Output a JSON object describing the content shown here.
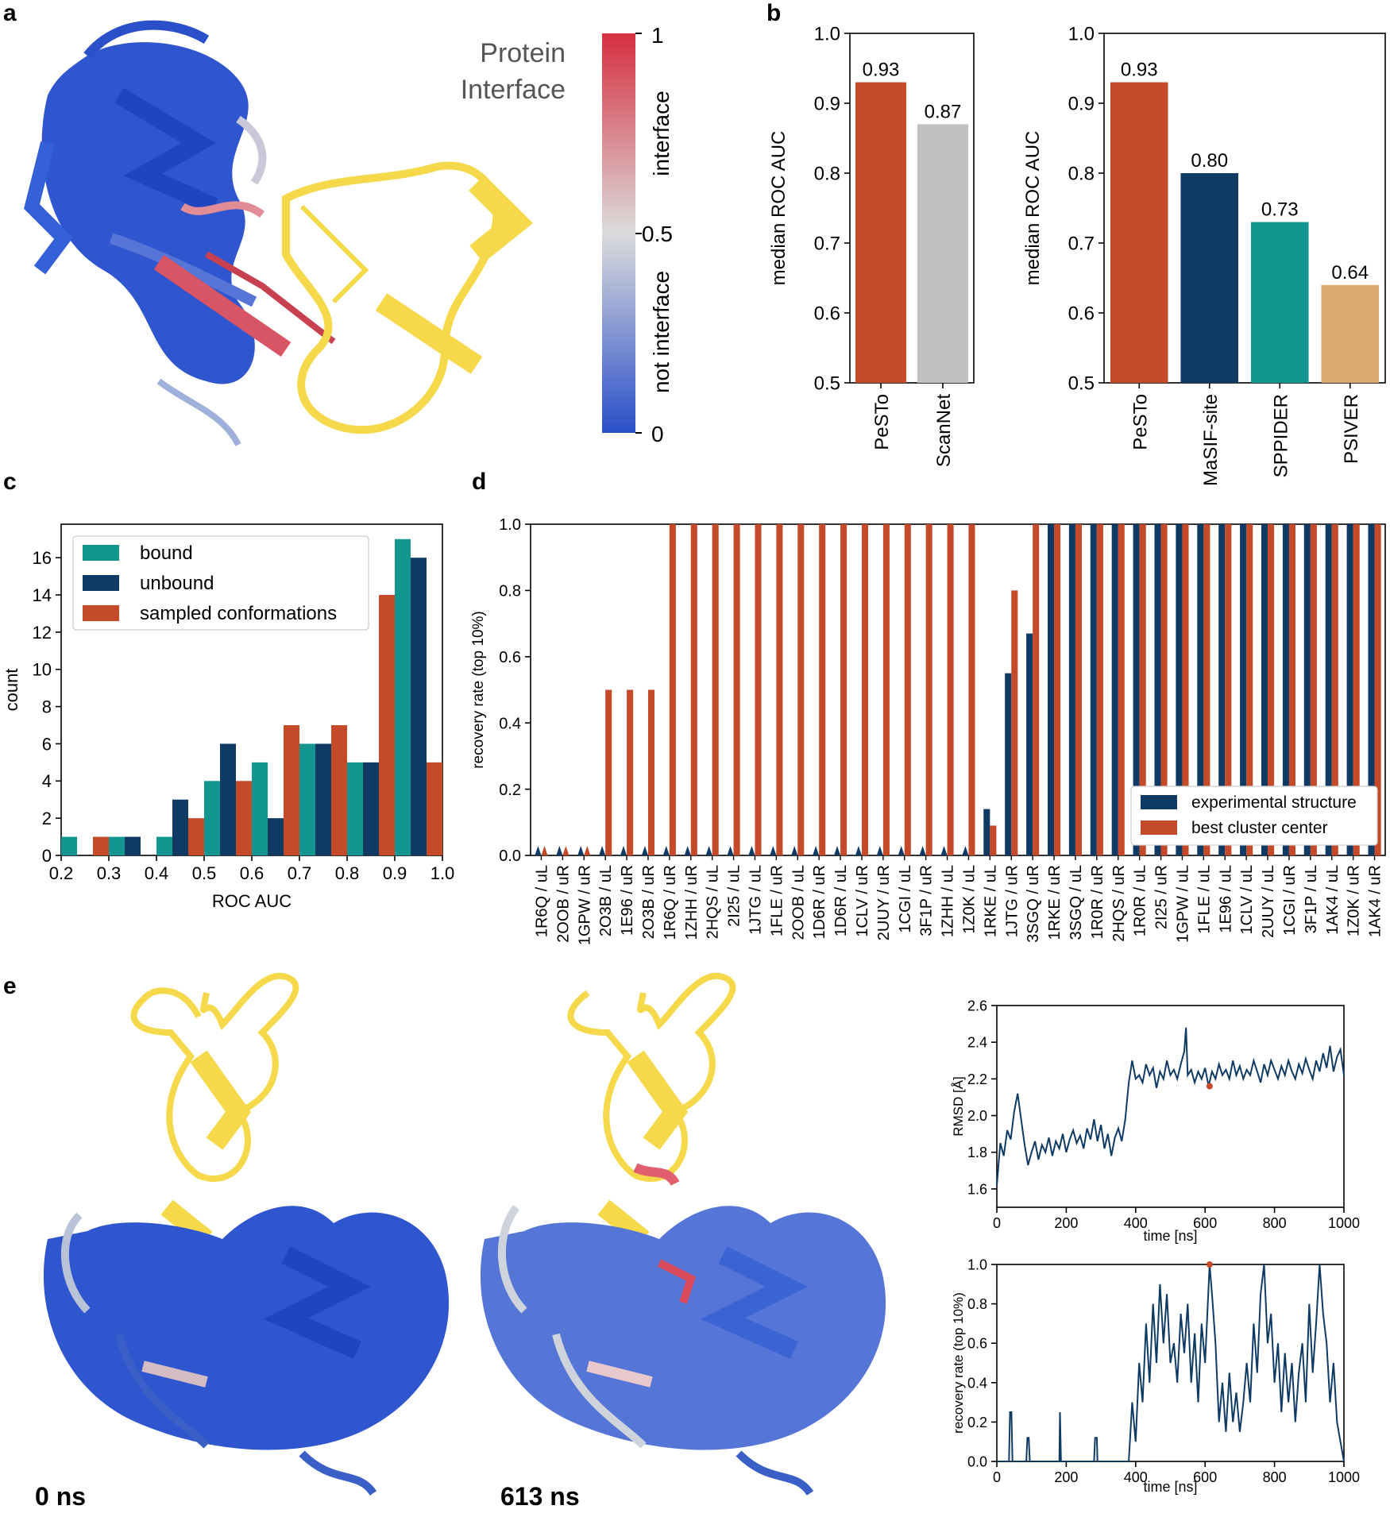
{
  "panel_labels": {
    "a": "a",
    "b": "b",
    "c": "c",
    "d": "d",
    "e": "e"
  },
  "panel_a": {
    "title_line1": "Protein",
    "title_line2": "Interface",
    "colorbar": {
      "ticks": [
        "1",
        "0.5",
        "0"
      ],
      "label_top": "interface",
      "label_bottom": "not interface",
      "colors": {
        "high": "#d62f40",
        "mid": "#dcdcdc",
        "low": "#2a4fc9"
      }
    }
  },
  "panel_e": {
    "time_left": "0 ns",
    "time_right": "613 ns"
  },
  "colors": {
    "pesto": "#c54a2a",
    "scannet": "#c0c0c0",
    "masif": "#0f3a64",
    "sppider": "#13968f",
    "psiver": "#d9aa6e",
    "bound": "#13968f",
    "unbound": "#0f3a64",
    "sampled": "#c54a2a",
    "protein_yellow": "#f5d94a",
    "protein_blue": "#2f55cf"
  },
  "chart_data": [
    {
      "id": "b_left",
      "type": "bar",
      "categories": [
        "PeSTo",
        "ScanNet"
      ],
      "values": [
        0.93,
        0.87
      ],
      "value_labels": [
        "0.93",
        "0.87"
      ],
      "ylabel": "median ROC AUC",
      "ylim": [
        0.5,
        1.0
      ],
      "yticks": [
        "0.5",
        "0.6",
        "0.7",
        "0.8",
        "0.9",
        "1.0"
      ]
    },
    {
      "id": "b_right",
      "type": "bar",
      "categories": [
        "PeSTo",
        "MaSIF-site",
        "SPPIDER",
        "PSIVER"
      ],
      "values": [
        0.93,
        0.8,
        0.73,
        0.64
      ],
      "value_labels": [
        "0.93",
        "0.80",
        "0.73",
        "0.64"
      ],
      "ylabel": "median ROC AUC",
      "ylim": [
        0.5,
        1.0
      ],
      "yticks": [
        "0.5",
        "0.6",
        "0.7",
        "0.8",
        "0.9",
        "1.0"
      ]
    },
    {
      "id": "c",
      "type": "bar",
      "xlabel": "ROC AUC",
      "ylabel": "count",
      "xlim": [
        0.2,
        1.0
      ],
      "ylim": [
        0,
        17.8
      ],
      "xticks": [
        "0.2",
        "0.3",
        "0.4",
        "0.5",
        "0.6",
        "0.7",
        "0.8",
        "0.9",
        "1.0"
      ],
      "yticks": [
        "0",
        "2",
        "4",
        "6",
        "8",
        "10",
        "12",
        "14",
        "16"
      ],
      "bin_centers": [
        0.25,
        0.35,
        0.45,
        0.55,
        0.65,
        0.75,
        0.85,
        0.95
      ],
      "legend_position": "top-left",
      "series": [
        {
          "name": "bound",
          "values": [
            1,
            1,
            1,
            4,
            5,
            6,
            5,
            17
          ]
        },
        {
          "name": "unbound",
          "values": [
            0,
            1,
            3,
            6,
            2,
            6,
            5,
            16
          ]
        },
        {
          "name": "sampled conformations",
          "values": [
            1,
            0,
            2,
            4,
            7,
            7,
            14,
            5
          ]
        }
      ]
    },
    {
      "id": "d",
      "type": "bar",
      "ylabel": "recovery rate (top 10%)",
      "ylim": [
        0,
        1.0
      ],
      "yticks": [
        "0.0",
        "0.2",
        "0.4",
        "0.6",
        "0.8",
        "1.0"
      ],
      "legend_position": "bottom-right",
      "categories": [
        "1R6Q / uL",
        "2OOB / uR",
        "1GPW / uR",
        "2O3B / uL",
        "1E96 / uR",
        "2O3B / uR",
        "1R6Q / uR",
        "1ZHH / uR",
        "2HQS / uL",
        "2I25 / uL",
        "1JTG / uL",
        "1FLE / uR",
        "2OOB / uL",
        "1D6R / uR",
        "1D6R / uL",
        "1CLV / uR",
        "2UUY / uR",
        "1CGI / uL",
        "3F1P / uR",
        "1ZHH / uL",
        "1Z0K / uL",
        "1RKE / uL",
        "1JTG / uR",
        "3SGQ / uR",
        "1RKE / uR",
        "3SGQ / uL",
        "1R0R / uR",
        "2HQS / uR",
        "1R0R / uL",
        "2I25 / uR",
        "1GPW / uL",
        "1FLE / uL",
        "1E96 / uL",
        "1CLV / uL",
        "2UUY / uL",
        "1CGI / uR",
        "3F1P / uL",
        "1AK4 / uL",
        "1Z0K / uR",
        "1AK4 / uR"
      ],
      "series": [
        {
          "name": "experimental structure",
          "values": [
            0,
            0,
            0,
            0,
            0,
            0,
            0,
            0,
            0,
            0,
            0,
            0,
            0,
            0,
            0,
            0,
            0,
            0,
            0,
            0,
            0,
            0.14,
            0.55,
            0.67,
            1,
            1,
            1,
            1,
            1,
            1,
            1,
            1,
            1,
            1,
            1,
            1,
            1,
            1,
            1,
            1
          ]
        },
        {
          "name": "best cluster center",
          "values": [
            0,
            0,
            0,
            0.5,
            0.5,
            0.5,
            1,
            1,
            1,
            1,
            1,
            1,
            1,
            1,
            1,
            1,
            1,
            1,
            1,
            1,
            1,
            0.09,
            0.8,
            1,
            1,
            1,
            1,
            1,
            1,
            1,
            1,
            1,
            1,
            1,
            1,
            1,
            1,
            1,
            1,
            1
          ]
        }
      ]
    },
    {
      "id": "e_top",
      "type": "line",
      "xlabel": "time [ns]",
      "ylabel": "RMSD [Å]",
      "xlim": [
        0,
        1000
      ],
      "ylim": [
        1.5,
        2.6
      ],
      "xticks": [
        "0",
        "200",
        "400",
        "600",
        "800",
        "1000"
      ],
      "yticks": [
        "1.6",
        "1.8",
        "2.0",
        "2.2",
        "2.4",
        "2.6"
      ],
      "series": [
        {
          "values": [
            [
              0,
              1.62
            ],
            [
              10,
              1.85
            ],
            [
              20,
              1.78
            ],
            [
              30,
              1.92
            ],
            [
              40,
              1.87
            ],
            [
              50,
              2.02
            ],
            [
              60,
              2.12
            ],
            [
              70,
              1.98
            ],
            [
              80,
              1.84
            ],
            [
              90,
              1.73
            ],
            [
              100,
              1.8
            ],
            [
              110,
              1.86
            ],
            [
              120,
              1.76
            ],
            [
              130,
              1.84
            ],
            [
              140,
              1.8
            ],
            [
              150,
              1.88
            ],
            [
              160,
              1.78
            ],
            [
              170,
              1.86
            ],
            [
              180,
              1.82
            ],
            [
              190,
              1.9
            ],
            [
              200,
              1.8
            ],
            [
              210,
              1.87
            ],
            [
              220,
              1.92
            ],
            [
              230,
              1.85
            ],
            [
              240,
              1.89
            ],
            [
              250,
              1.82
            ],
            [
              260,
              1.93
            ],
            [
              270,
              1.87
            ],
            [
              280,
              1.98
            ],
            [
              290,
              1.86
            ],
            [
              300,
              1.95
            ],
            [
              310,
              1.82
            ],
            [
              320,
              1.9
            ],
            [
              330,
              1.78
            ],
            [
              340,
              1.88
            ],
            [
              350,
              1.93
            ],
            [
              360,
              1.86
            ],
            [
              370,
              1.98
            ],
            [
              380,
              2.18
            ],
            [
              390,
              2.3
            ],
            [
              400,
              2.2
            ],
            [
              410,
              2.22
            ],
            [
              420,
              2.18
            ],
            [
              430,
              2.28
            ],
            [
              440,
              2.22
            ],
            [
              450,
              2.26
            ],
            [
              460,
              2.15
            ],
            [
              470,
              2.24
            ],
            [
              480,
              2.2
            ],
            [
              490,
              2.3
            ],
            [
              500,
              2.22
            ],
            [
              510,
              2.25
            ],
            [
              520,
              2.2
            ],
            [
              530,
              2.28
            ],
            [
              540,
              2.35
            ],
            [
              545,
              2.48
            ],
            [
              550,
              2.22
            ],
            [
              560,
              2.25
            ],
            [
              570,
              2.18
            ],
            [
              580,
              2.24
            ],
            [
              590,
              2.2
            ],
            [
              600,
              2.26
            ],
            [
              610,
              2.16
            ],
            [
              620,
              2.24
            ],
            [
              630,
              2.2
            ],
            [
              640,
              2.28
            ],
            [
              650,
              2.22
            ],
            [
              660,
              2.25
            ],
            [
              670,
              2.2
            ],
            [
              680,
              2.3
            ],
            [
              690,
              2.22
            ],
            [
              700,
              2.27
            ],
            [
              710,
              2.2
            ],
            [
              720,
              2.25
            ],
            [
              730,
              2.22
            ],
            [
              740,
              2.3
            ],
            [
              750,
              2.24
            ],
            [
              760,
              2.18
            ],
            [
              770,
              2.28
            ],
            [
              780,
              2.22
            ],
            [
              790,
              2.3
            ],
            [
              800,
              2.25
            ],
            [
              810,
              2.2
            ],
            [
              820,
              2.27
            ],
            [
              830,
              2.22
            ],
            [
              840,
              2.3
            ],
            [
              850,
              2.24
            ],
            [
              860,
              2.2
            ],
            [
              870,
              2.28
            ],
            [
              880,
              2.23
            ],
            [
              890,
              2.31
            ],
            [
              900,
              2.25
            ],
            [
              910,
              2.2
            ],
            [
              920,
              2.3
            ],
            [
              930,
              2.24
            ],
            [
              940,
              2.34
            ],
            [
              950,
              2.26
            ],
            [
              960,
              2.38
            ],
            [
              970,
              2.24
            ],
            [
              980,
              2.32
            ],
            [
              990,
              2.36
            ],
            [
              1000,
              2.22
            ]
          ]
        }
      ],
      "marker": {
        "x": 613,
        "y": 2.16
      }
    },
    {
      "id": "e_bottom",
      "type": "line",
      "xlabel": "time [ns]",
      "ylabel": "recovery rate (top 10%)",
      "xlim": [
        0,
        1000
      ],
      "ylim": [
        0,
        1.0
      ],
      "xticks": [
        "0",
        "200",
        "400",
        "600",
        "800",
        "1000"
      ],
      "yticks": [
        "0.0",
        "0.2",
        "0.4",
        "0.6",
        "0.8",
        "1.0"
      ],
      "series": [
        {
          "values": [
            [
              0,
              0
            ],
            [
              35,
              0
            ],
            [
              38,
              0.25
            ],
            [
              42,
              0.25
            ],
            [
              45,
              0
            ],
            [
              85,
              0
            ],
            [
              88,
              0.12
            ],
            [
              92,
              0.12
            ],
            [
              95,
              0
            ],
            [
              180,
              0
            ],
            [
              182,
              0.25
            ],
            [
              185,
              0
            ],
            [
              280,
              0
            ],
            [
              283,
              0.12
            ],
            [
              288,
              0.12
            ],
            [
              290,
              0
            ],
            [
              380,
              0
            ],
            [
              390,
              0.3
            ],
            [
              400,
              0.1
            ],
            [
              410,
              0.5
            ],
            [
              420,
              0.3
            ],
            [
              430,
              0.7
            ],
            [
              440,
              0.4
            ],
            [
              450,
              0.8
            ],
            [
              460,
              0.5
            ],
            [
              470,
              0.9
            ],
            [
              480,
              0.6
            ],
            [
              490,
              0.85
            ],
            [
              500,
              0.5
            ],
            [
              510,
              0.6
            ],
            [
              520,
              0.4
            ],
            [
              530,
              0.75
            ],
            [
              540,
              0.55
            ],
            [
              550,
              0.8
            ],
            [
              560,
              0.4
            ],
            [
              570,
              0.65
            ],
            [
              580,
              0.3
            ],
            [
              590,
              0.7
            ],
            [
              600,
              0.5
            ],
            [
              613,
              1.0
            ],
            [
              620,
              0.85
            ],
            [
              630,
              0.6
            ],
            [
              640,
              0.2
            ],
            [
              650,
              0.4
            ],
            [
              660,
              0.15
            ],
            [
              670,
              0.45
            ],
            [
              680,
              0.2
            ],
            [
              690,
              0.35
            ],
            [
              700,
              0.15
            ],
            [
              710,
              0.3
            ],
            [
              720,
              0.5
            ],
            [
              730,
              0.3
            ],
            [
              740,
              0.7
            ],
            [
              750,
              0.45
            ],
            [
              760,
              0.85
            ],
            [
              770,
              1.0
            ],
            [
              780,
              0.6
            ],
            [
              790,
              0.75
            ],
            [
              800,
              0.4
            ],
            [
              810,
              0.6
            ],
            [
              820,
              0.25
            ],
            [
              830,
              0.55
            ],
            [
              840,
              0.3
            ],
            [
              850,
              0.5
            ],
            [
              860,
              0.2
            ],
            [
              870,
              0.45
            ],
            [
              880,
              0.6
            ],
            [
              890,
              0.3
            ],
            [
              900,
              0.8
            ],
            [
              910,
              0.45
            ],
            [
              920,
              0.7
            ],
            [
              930,
              1.0
            ],
            [
              940,
              0.75
            ],
            [
              950,
              0.6
            ],
            [
              960,
              0.3
            ],
            [
              970,
              0.5
            ],
            [
              980,
              0.2
            ],
            [
              990,
              0.1
            ],
            [
              1000,
              0
            ]
          ]
        }
      ],
      "marker": {
        "x": 613,
        "y": 1.0
      }
    }
  ]
}
